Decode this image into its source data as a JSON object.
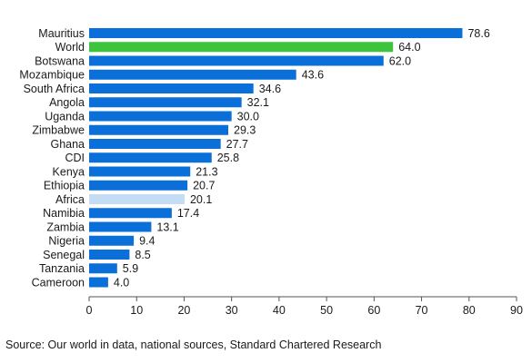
{
  "chart_data": {
    "type": "bar",
    "orientation": "horizontal",
    "categories": [
      "Mauritius",
      "World",
      "Botswana",
      "Mozambique",
      "South Africa",
      "Angola",
      "Uganda",
      "Zimbabwe",
      "Ghana",
      "CDI",
      "Kenya",
      "Ethiopia",
      "Africa",
      "Namibia",
      "Zambia",
      "Nigeria",
      "Senegal",
      "Tanzania",
      "Cameroon"
    ],
    "values": [
      78.6,
      64.0,
      62.0,
      43.6,
      34.6,
      32.1,
      30.0,
      29.3,
      27.7,
      25.8,
      21.3,
      20.7,
      20.1,
      17.4,
      13.1,
      9.4,
      8.5,
      5.9,
      4.0
    ],
    "value_labels": [
      "78.6",
      "64.0",
      "62.0",
      "43.6",
      "34.6",
      "32.1",
      "30.0",
      "29.3",
      "27.7",
      "25.8",
      "21.3",
      "20.7",
      "20.1",
      "17.4",
      "13.1",
      "9.4",
      "8.5",
      "5.9",
      "4.0"
    ],
    "highlight": {
      "World": "#3cc43c",
      "Africa": "#c4dcf4"
    },
    "bar_color": "#0a6fd8",
    "xlim": [
      0,
      90
    ],
    "xticks": [
      0,
      10,
      20,
      30,
      40,
      50,
      60,
      70,
      80,
      90
    ],
    "grid": false,
    "title": "",
    "xlabel": "",
    "ylabel": ""
  },
  "source": "Source: Our world in data, national sources, Standard Chartered Research"
}
